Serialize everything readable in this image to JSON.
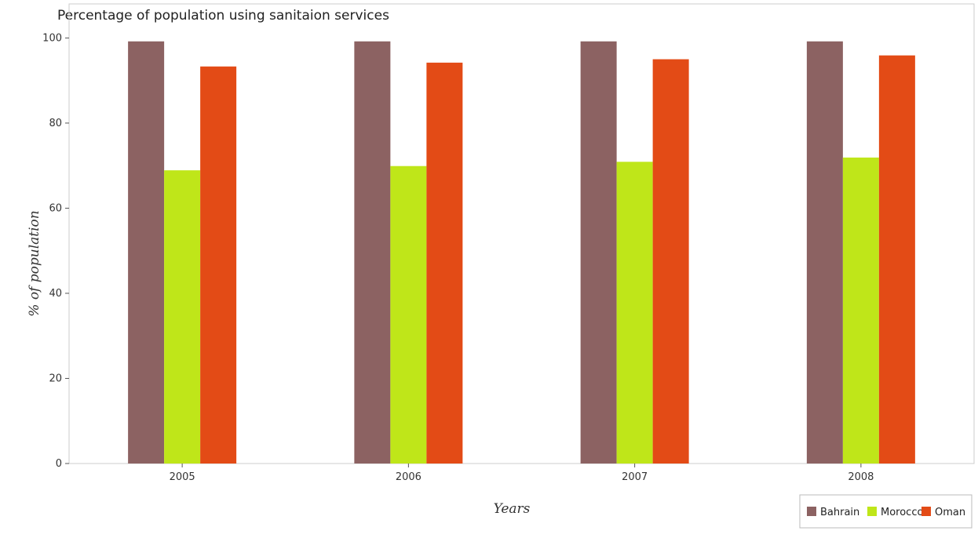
{
  "chart_data": {
    "type": "bar",
    "title": "Percentage of population using sanitaion services",
    "xlabel": "Years",
    "ylabel": "% of population",
    "categories": [
      "2005",
      "2006",
      "2007",
      "2008"
    ],
    "series": [
      {
        "name": "Bahrain",
        "color": "#8c6262",
        "values": [
          99.2,
          99.2,
          99.2,
          99.2
        ]
      },
      {
        "name": "Morocco",
        "color": "#bfe619",
        "values": [
          68.9,
          69.9,
          70.9,
          71.9
        ]
      },
      {
        "name": "Oman",
        "color": "#e34b16",
        "values": [
          93.3,
          94.2,
          95.0,
          95.9
        ]
      }
    ],
    "ylim": [
      0,
      108
    ],
    "yticks": [
      0,
      20,
      40,
      60,
      80,
      100
    ],
    "grid": false,
    "legend_position": "bottom-right"
  }
}
